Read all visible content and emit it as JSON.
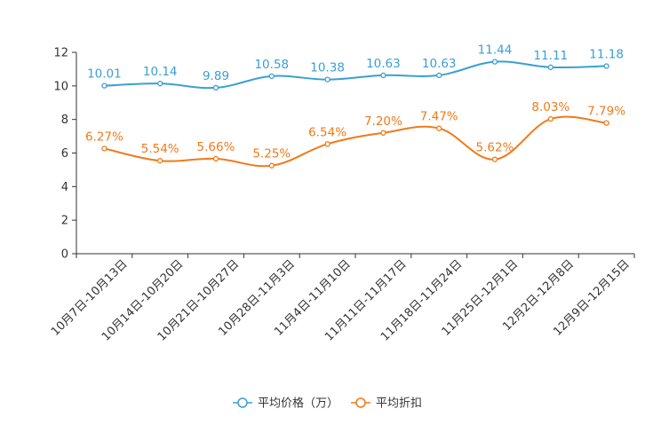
{
  "chart_data": {
    "type": "line",
    "categories": [
      "10月7日-10月13日",
      "10月14日-10月20日",
      "10月21日-10月27日",
      "10月28日-11月3日",
      "11月4日-11月10日",
      "11月11日-11月17日",
      "11月18日-11月24日",
      "11月25日-12月1日",
      "12月2日-12月8日",
      "12月9日-12月15日"
    ],
    "series": [
      {
        "name": "平均价格（万）",
        "color": "#3a9fd5",
        "values": [
          10.01,
          10.14,
          9.89,
          10.58,
          10.38,
          10.63,
          10.63,
          11.44,
          11.11,
          11.18
        ],
        "labels": [
          "10.01",
          "10.14",
          "9.89",
          "10.58",
          "10.38",
          "10.63",
          "10.63",
          "11.44",
          "11.11",
          "11.18"
        ]
      },
      {
        "name": "平均折扣",
        "color": "#f07a1a",
        "values": [
          6.27,
          5.54,
          5.66,
          5.25,
          6.54,
          7.2,
          7.47,
          5.62,
          8.03,
          7.79
        ],
        "labels": [
          "6.27%",
          "5.54%",
          "5.66%",
          "5.25%",
          "6.54%",
          "7.20%",
          "7.47%",
          "5.62%",
          "8.03%",
          "7.79%"
        ]
      }
    ],
    "ylim": [
      0,
      12
    ],
    "yticks": [
      0,
      2,
      4,
      6,
      8,
      10,
      12
    ],
    "ytick_labels": [
      "0",
      "2",
      "4",
      "6",
      "8",
      "10",
      "12"
    ],
    "legend_position": "bottom-center",
    "grid": false
  }
}
